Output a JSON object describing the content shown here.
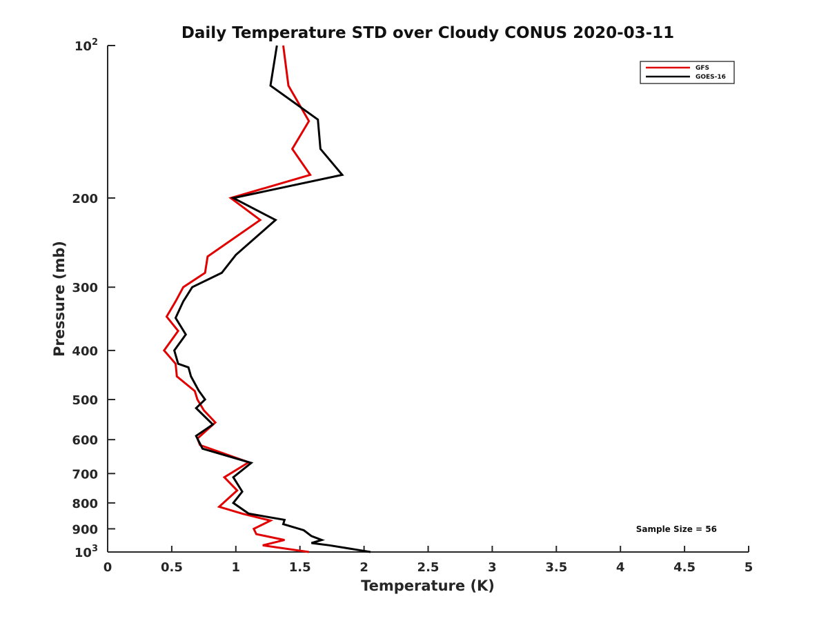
{
  "chart_data": {
    "type": "line",
    "title": "Daily Temperature STD over Cloudy CONUS 2020-03-11",
    "xlabel": "Temperature (K)",
    "ylabel": "Pressure (mb)",
    "xlim": [
      0,
      5
    ],
    "ylim": [
      1000,
      100
    ],
    "yscale": "log",
    "x_ticks": [
      0,
      0.5,
      1,
      1.5,
      2,
      2.5,
      3,
      3.5,
      4,
      4.5,
      5
    ],
    "x_tick_labels": [
      "0",
      "0.5",
      "1",
      "1.5",
      "2",
      "2.5",
      "3",
      "3.5",
      "4",
      "4.5",
      "5"
    ],
    "y_ticks": [
      100,
      200,
      300,
      400,
      500,
      600,
      700,
      800,
      900,
      1000
    ],
    "y_tick_labels": [
      {
        "base": "10",
        "exp": "2"
      },
      {
        "base": "200",
        "exp": ""
      },
      {
        "base": "300",
        "exp": ""
      },
      {
        "base": "400",
        "exp": ""
      },
      {
        "base": "500",
        "exp": ""
      },
      {
        "base": "600",
        "exp": ""
      },
      {
        "base": "700",
        "exp": ""
      },
      {
        "base": "800",
        "exp": ""
      },
      {
        "base": "900",
        "exp": ""
      },
      {
        "base": "10",
        "exp": "3"
      }
    ],
    "grid": false,
    "legend_position": "top-right",
    "series": [
      {
        "name": "GFS",
        "color": "#e00000",
        "points": [
          [
            1.37,
            100
          ],
          [
            1.41,
            120
          ],
          [
            1.57,
            141
          ],
          [
            1.44,
            160
          ],
          [
            1.58,
            180
          ],
          [
            0.96,
            200
          ],
          [
            1.19,
            221
          ],
          [
            0.78,
            261
          ],
          [
            0.76,
            281
          ],
          [
            0.59,
            300
          ],
          [
            0.53,
            320
          ],
          [
            0.46,
            343
          ],
          [
            0.55,
            366
          ],
          [
            0.44,
            400
          ],
          [
            0.53,
            425
          ],
          [
            0.54,
            450
          ],
          [
            0.68,
            481
          ],
          [
            0.7,
            500
          ],
          [
            0.75,
            525
          ],
          [
            0.84,
            555
          ],
          [
            0.7,
            597
          ],
          [
            0.72,
            615
          ],
          [
            1.1,
            665
          ],
          [
            0.91,
            712
          ],
          [
            1.01,
            756
          ],
          [
            0.87,
            814
          ],
          [
            1.05,
            840
          ],
          [
            1.27,
            867
          ],
          [
            1.14,
            900
          ],
          [
            1.16,
            922
          ],
          [
            1.38,
            947
          ],
          [
            1.21,
            970
          ],
          [
            1.57,
            1000
          ]
        ]
      },
      {
        "name": "GOES-16",
        "color": "#000000",
        "points": [
          [
            1.32,
            100
          ],
          [
            1.27,
            120
          ],
          [
            1.64,
            140
          ],
          [
            1.66,
            160
          ],
          [
            1.83,
            180
          ],
          [
            0.98,
            200
          ],
          [
            1.31,
            221
          ],
          [
            1.0,
            259
          ],
          [
            0.89,
            281
          ],
          [
            0.66,
            300
          ],
          [
            0.59,
            320
          ],
          [
            0.53,
            345
          ],
          [
            0.61,
            372
          ],
          [
            0.52,
            400
          ],
          [
            0.55,
            425
          ],
          [
            0.63,
            432
          ],
          [
            0.65,
            450
          ],
          [
            0.71,
            480
          ],
          [
            0.76,
            500
          ],
          [
            0.69,
            520
          ],
          [
            0.82,
            560
          ],
          [
            0.69,
            590
          ],
          [
            0.74,
            625
          ],
          [
            1.12,
            667
          ],
          [
            0.98,
            712
          ],
          [
            1.05,
            760
          ],
          [
            0.98,
            800
          ],
          [
            1.1,
            840
          ],
          [
            1.38,
            864
          ],
          [
            1.37,
            881
          ],
          [
            1.53,
            906
          ],
          [
            1.59,
            930
          ],
          [
            1.67,
            947
          ],
          [
            1.59,
            960
          ],
          [
            1.73,
            970
          ],
          [
            2.05,
            1000
          ]
        ]
      }
    ],
    "annotations": [
      "Sample Size = 56"
    ]
  }
}
